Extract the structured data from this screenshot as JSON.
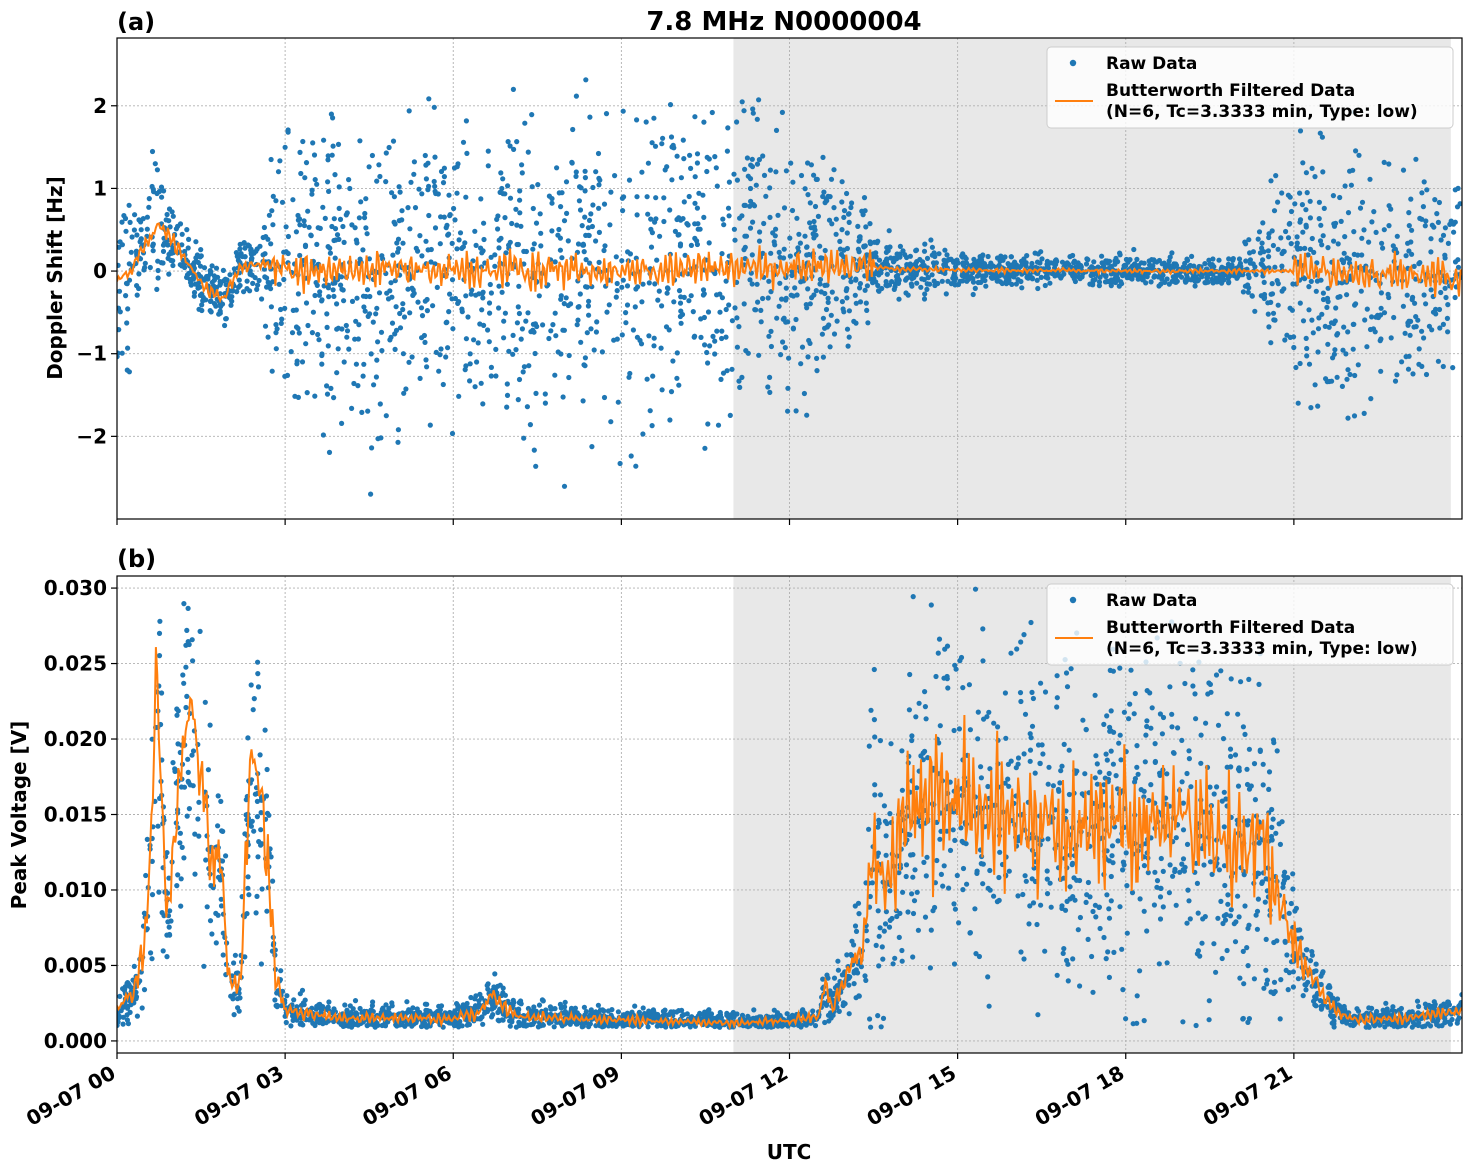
{
  "figure": {
    "title": "7.8 MHz N0000004",
    "xlabel": "UTC"
  },
  "colors": {
    "raw": "#1f77b4",
    "filtered": "#ff7f0e",
    "night_shade": "#e8e8e8",
    "grid": "#b0b0b0"
  },
  "chart_data": [
    {
      "type": "scatter",
      "panel_label": "(a)",
      "ylabel": "Doppler Shift [Hz]",
      "xlim": [
        0,
        24
      ],
      "ylim": [
        -3.0,
        2.82
      ],
      "x_ticks": [
        0,
        3,
        6,
        9,
        12,
        15,
        18,
        21
      ],
      "x_tick_labels": [],
      "y_ticks": [
        -2,
        -1,
        0,
        1,
        2
      ],
      "y_tick_labels": [
        "−2",
        "−1",
        "0",
        "1",
        "2"
      ],
      "shaded_x": [
        11.0,
        23.8
      ],
      "grid": true,
      "legend_position": "top-right",
      "legend": [
        "Raw Data",
        "Butterworth Filtered Data",
        "(N=6, Tc=3.3333 min, Type: low)"
      ],
      "raw_envelope": {
        "x": [
          0.0,
          0.4,
          0.7,
          1.0,
          1.5,
          2.0,
          2.5,
          2.8,
          3.5,
          4.5,
          5.5,
          6.5,
          6.8,
          7.5,
          8.5,
          9.5,
          10.5,
          11.5,
          12.5,
          13.0,
          13.5,
          14.0,
          16.0,
          18.0,
          20.0,
          21.0,
          22.0,
          23.0,
          24.0
        ],
        "spread": [
          0.75,
          0.55,
          0.6,
          0.35,
          0.25,
          0.2,
          0.2,
          0.9,
          1.1,
          1.25,
          1.15,
          0.9,
          1.2,
          1.2,
          1.25,
          1.3,
          1.2,
          1.1,
          0.9,
          0.7,
          0.3,
          0.2,
          0.12,
          0.12,
          0.1,
          0.9,
          1.05,
          0.95,
          0.9
        ]
      },
      "filtered_series": {
        "name": "Butterworth Filtered Data",
        "x": [
          0.0,
          0.2,
          0.4,
          0.6,
          0.75,
          0.9,
          1.2,
          1.6,
          1.9,
          2.2,
          2.6,
          3.0,
          6.0,
          9.0,
          12.0,
          13.0,
          13.5,
          14.0,
          18.0,
          21.0,
          24.0
        ],
        "y": [
          -0.1,
          -0.05,
          0.2,
          0.4,
          0.55,
          0.45,
          0.15,
          -0.2,
          -0.35,
          0.05,
          0.1,
          0.0,
          0.0,
          0.02,
          0.05,
          0.05,
          0.05,
          0.02,
          0.0,
          0.0,
          -0.05
        ],
        "noise_amplitude": 0.2
      }
    },
    {
      "type": "scatter",
      "panel_label": "(b)",
      "ylabel": "Peak Voltage [V]",
      "xlim": [
        0,
        24
      ],
      "ylim": [
        -0.0008,
        0.0308
      ],
      "x_ticks": [
        0,
        3,
        6,
        9,
        12,
        15,
        18,
        21
      ],
      "x_tick_labels": [
        "09-07 00",
        "09-07 03",
        "09-07 06",
        "09-07 09",
        "09-07 12",
        "09-07 15",
        "09-07 18",
        "09-07 21"
      ],
      "y_ticks": [
        0.0,
        0.005,
        0.01,
        0.015,
        0.02,
        0.025,
        0.03
      ],
      "y_tick_labels": [
        "0.000",
        "0.005",
        "0.010",
        "0.015",
        "0.020",
        "0.025",
        "0.030"
      ],
      "shaded_x": [
        11.0,
        23.8
      ],
      "grid": true,
      "legend_position": "top-right",
      "legend": [
        "Raw Data",
        "Butterworth Filtered Data",
        "(N=6, Tc=3.3333 min, Type: low)"
      ],
      "filtered_series": {
        "name": "Butterworth Filtered Data",
        "x": [
          0.0,
          0.15,
          0.3,
          0.5,
          0.6,
          0.7,
          0.8,
          0.9,
          1.0,
          1.15,
          1.3,
          1.5,
          1.7,
          1.85,
          2.0,
          2.2,
          2.4,
          2.55,
          2.7,
          2.85,
          3.0,
          4.0,
          6.0,
          6.5,
          6.7,
          6.9,
          7.2,
          8.0,
          10.0,
          11.0,
          12.0,
          12.3,
          12.5,
          12.65,
          12.75,
          12.9,
          13.1,
          13.3,
          13.5,
          13.7,
          13.9,
          14.2,
          15.0,
          17.0,
          19.0,
          20.0,
          20.5,
          20.9,
          21.2,
          21.6,
          22.0,
          23.0,
          24.0
        ],
        "y": [
          0.002,
          0.0028,
          0.003,
          0.007,
          0.012,
          0.025,
          0.016,
          0.008,
          0.012,
          0.019,
          0.022,
          0.018,
          0.011,
          0.012,
          0.004,
          0.0035,
          0.02,
          0.016,
          0.012,
          0.004,
          0.002,
          0.0015,
          0.0015,
          0.002,
          0.0032,
          0.0022,
          0.0016,
          0.0015,
          0.0013,
          0.0012,
          0.0013,
          0.0016,
          0.0015,
          0.004,
          0.0022,
          0.0035,
          0.005,
          0.006,
          0.013,
          0.011,
          0.012,
          0.016,
          0.016,
          0.014,
          0.015,
          0.013,
          0.013,
          0.007,
          0.005,
          0.0025,
          0.0014,
          0.0015,
          0.002
        ],
        "noise_amplitude": 0.0025
      }
    }
  ]
}
